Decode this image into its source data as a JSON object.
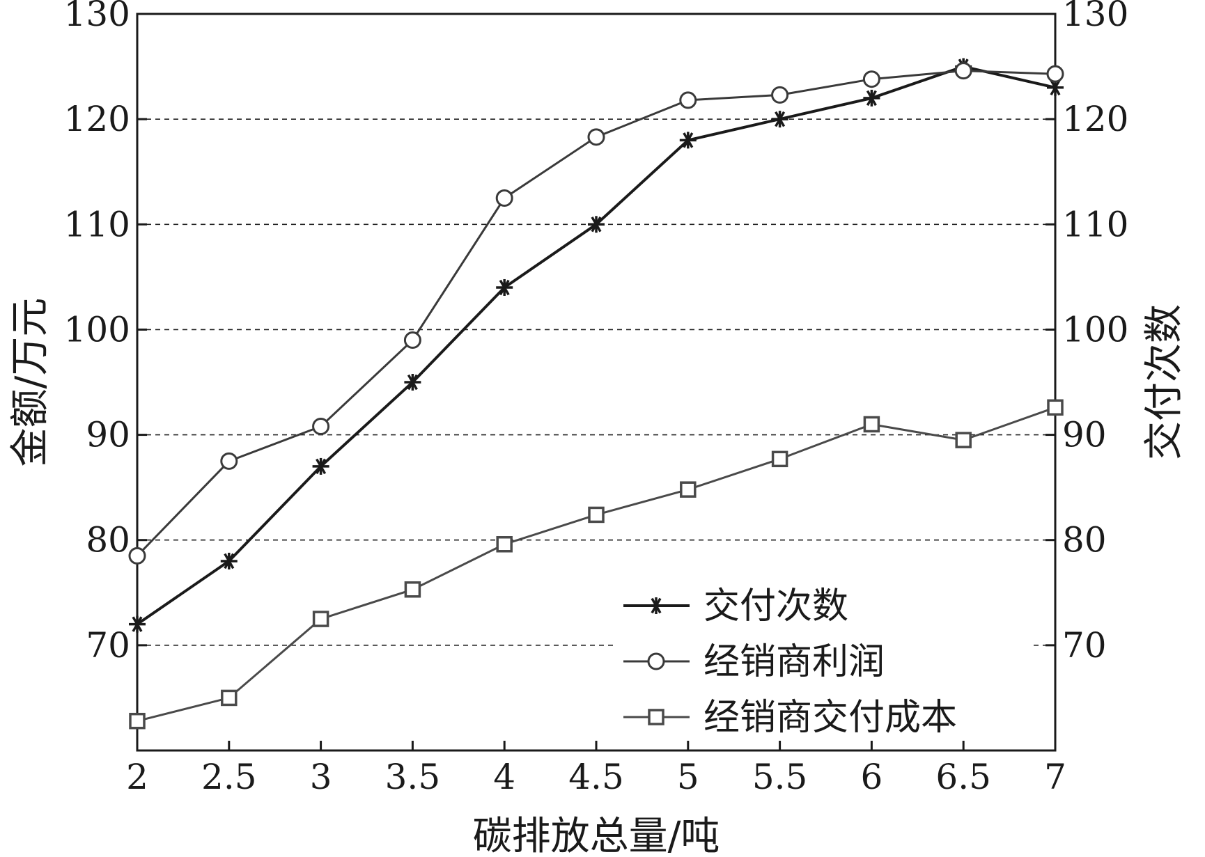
{
  "chart_data": {
    "type": "line",
    "xlabel": "碳排放总量/吨",
    "ylabel_left": "金额/万元",
    "ylabel_right": "交付次数",
    "x": [
      2,
      2.5,
      3,
      3.5,
      4,
      4.5,
      5,
      5.5,
      6,
      6.5,
      7
    ],
    "x_tick_labels": [
      "2",
      "2.5",
      "3",
      "3.5",
      "4",
      "4.5",
      "5",
      "5.5",
      "6",
      "6.5",
      "7"
    ],
    "xlim": [
      2,
      7
    ],
    "ylim": [
      60,
      130
    ],
    "y_ticks": [
      70,
      80,
      90,
      100,
      110,
      120,
      130
    ],
    "y_tick_labels": [
      "70",
      "80",
      "90",
      "100",
      "110",
      "120",
      "130"
    ],
    "grid": "horizontal dashed",
    "legend_position": "bottom-right",
    "series": [
      {
        "name": "交付次数",
        "marker": "star",
        "color": "#1a1a1a",
        "values": [
          72,
          78,
          87,
          95,
          104,
          110,
          118,
          120,
          122,
          125,
          123
        ]
      },
      {
        "name": "经销商利润",
        "marker": "circle",
        "color": "#3a3a3a",
        "values": [
          78.5,
          87.5,
          90.8,
          99,
          112.5,
          118.3,
          121.8,
          122.3,
          123.8,
          124.6,
          124.3
        ]
      },
      {
        "name": "经销商交付成本",
        "marker": "square",
        "color": "#4a4a4a",
        "values": [
          62.8,
          65,
          72.5,
          75.3,
          79.6,
          82.4,
          84.8,
          87.7,
          91,
          89.5,
          92.6
        ]
      }
    ]
  }
}
